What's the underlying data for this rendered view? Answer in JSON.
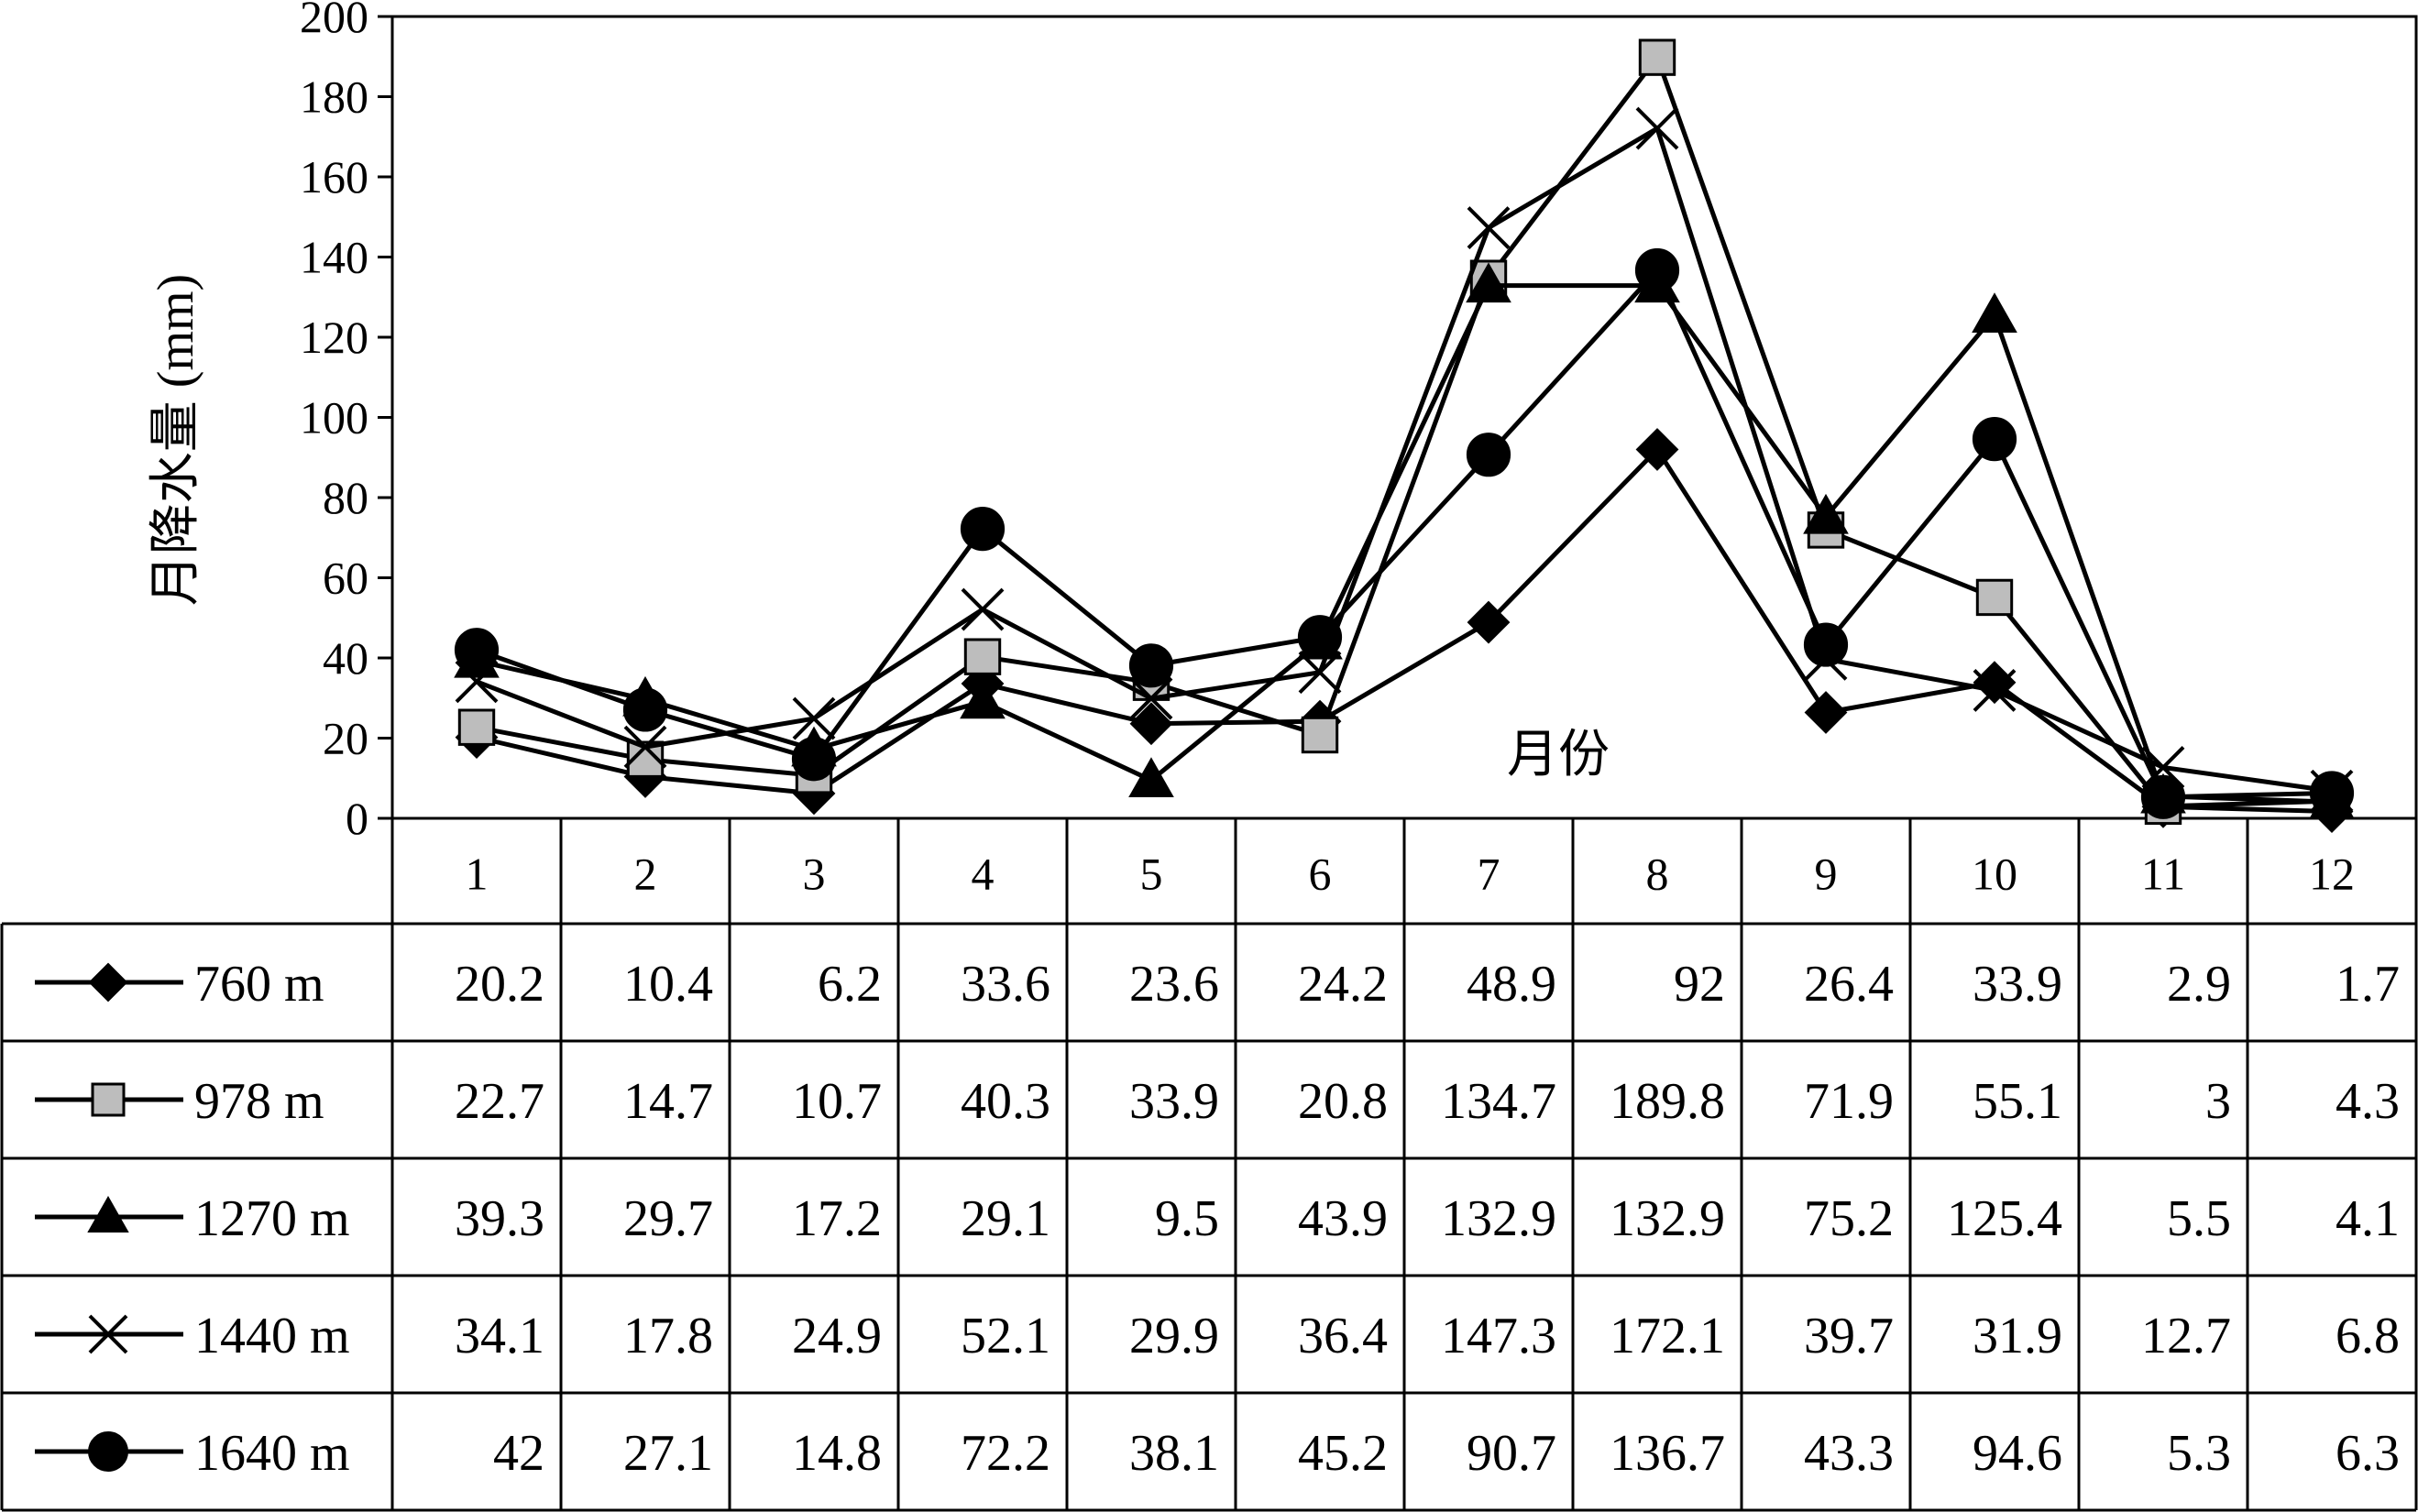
{
  "chart_data": {
    "type": "line",
    "ylabel": "月降水量 (mm)",
    "xlabel": "月份",
    "ylim": [
      0,
      200
    ],
    "yticks": [
      0,
      20,
      40,
      60,
      80,
      100,
      120,
      140,
      160,
      180,
      200
    ],
    "categories": [
      "1",
      "2",
      "3",
      "4",
      "5",
      "6",
      "7",
      "8",
      "9",
      "10",
      "11",
      "12"
    ],
    "grid": false,
    "legend": "data-table-rows",
    "series": [
      {
        "name": "760 m",
        "marker": "diamond",
        "values": [
          20.2,
          10.4,
          6.2,
          33.6,
          23.6,
          24.2,
          48.9,
          92,
          26.4,
          33.9,
          2.9,
          1.7
        ]
      },
      {
        "name": "978 m",
        "marker": "square",
        "values": [
          22.7,
          14.7,
          10.7,
          40.3,
          33.9,
          20.8,
          134.7,
          189.8,
          71.9,
          55.1,
          3,
          4.3
        ]
      },
      {
        "name": "1270 m",
        "marker": "triangle",
        "values": [
          39.3,
          29.7,
          17.2,
          29.1,
          9.5,
          43.9,
          132.9,
          132.9,
          75.2,
          125.4,
          5.5,
          4.1
        ]
      },
      {
        "name": "1440 m",
        "marker": "x",
        "values": [
          34.1,
          17.8,
          24.9,
          52.1,
          29.9,
          36.4,
          147.3,
          172.1,
          39.7,
          31.9,
          12.7,
          6.8
        ]
      },
      {
        "name": "1640 m",
        "marker": "circle",
        "values": [
          42,
          27.1,
          14.8,
          72.2,
          38.1,
          45.2,
          90.7,
          136.7,
          43.3,
          94.6,
          5.3,
          6.3
        ]
      }
    ]
  }
}
